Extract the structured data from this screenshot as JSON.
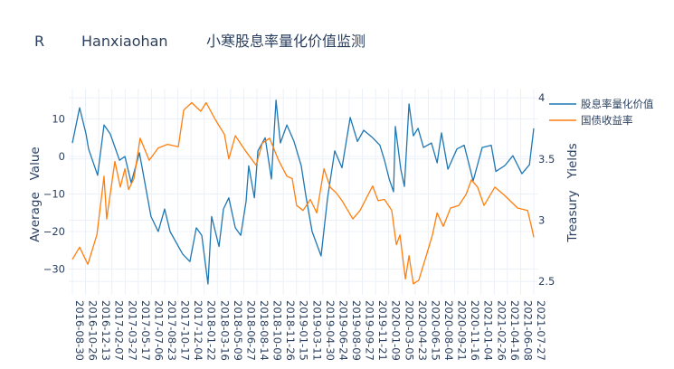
{
  "title": {
    "parts": [
      "R",
      "Hanxiaohan",
      "小寒股息率量化价值监测"
    ]
  },
  "chart_data": {
    "type": "line",
    "title": "R Hanxiaohan 小寒股息率量化价值监测",
    "xlabel": "",
    "ylabel": "Average   Value",
    "y2label": "Treasury   Yields",
    "x_note": "x in approximate day offsets from first tick to last tick",
    "x_range": [
      0,
      1790
    ],
    "ylim": [
      -35.9,
      17.6
    ],
    "y2lim": [
      2.42,
      4.06
    ],
    "yticks": [
      -30,
      -20,
      -10,
      0,
      10
    ],
    "ytick_labels": [
      "−30",
      "−20",
      "−10",
      "0",
      "10"
    ],
    "y2ticks": [
      2.5,
      3,
      3.5,
      4
    ],
    "y2tick_labels": [
      "2.5",
      "3",
      "3.5",
      "4"
    ],
    "xtick_labels": [
      "2016-08-30",
      "2016-10-26",
      "2016-12-13",
      "2017-02-07",
      "2017-03-27",
      "2017-05-17",
      "2017-07-06",
      "2017-08-23",
      "2017-10-17",
      "2017-12-04",
      "2018-01-22",
      "2018-03-16",
      "2018-05-09",
      "2018-06-27",
      "2018-08-14",
      "2018-10-09",
      "2018-11-26",
      "2019-01-15",
      "2019-03-11",
      "2019-04-30",
      "2019-06-24",
      "2019-08-09",
      "2019-09-27",
      "2019-11-21",
      "2020-01-09",
      "2020-03-05",
      "2020-04-23",
      "2020-06-15",
      "2020-08-04",
      "2020-09-21",
      "2020-11-16",
      "2021-01-04",
      "2021-02-26",
      "2021-04-16",
      "2021-06-08",
      "2021-07-27"
    ],
    "grid": true,
    "legend_position": "top-right",
    "series": [
      {
        "name": "股息率量化价值",
        "axis": "y",
        "color": "#1f77b4",
        "points": [
          [
            0,
            3.6
          ],
          [
            28,
            13
          ],
          [
            53,
            6
          ],
          [
            63,
            2
          ],
          [
            98,
            -5
          ],
          [
            123,
            8.4
          ],
          [
            147,
            6
          ],
          [
            183,
            -1
          ],
          [
            204,
            0
          ],
          [
            228,
            -7
          ],
          [
            260,
            1
          ],
          [
            305,
            -16
          ],
          [
            333,
            -20
          ],
          [
            358,
            -14
          ],
          [
            379,
            -20
          ],
          [
            428,
            -26
          ],
          [
            456,
            -28
          ],
          [
            481,
            -19
          ],
          [
            502,
            -21
          ],
          [
            526,
            -34
          ],
          [
            540,
            -16
          ],
          [
            569,
            -24
          ],
          [
            586,
            -14
          ],
          [
            607,
            -11
          ],
          [
            632,
            -19
          ],
          [
            653,
            -21
          ],
          [
            674,
            -12
          ],
          [
            684,
            -2.5
          ],
          [
            706,
            -11
          ],
          [
            720,
            1.5
          ],
          [
            748,
            5
          ],
          [
            772,
            -6
          ],
          [
            790,
            15
          ],
          [
            807,
            3.6
          ],
          [
            832,
            8.4
          ],
          [
            860,
            4
          ],
          [
            888,
            -2.5
          ],
          [
            906,
            -10.5
          ],
          [
            930,
            -20
          ],
          [
            965,
            -26.5
          ],
          [
            990,
            -11
          ],
          [
            1018,
            1.5
          ],
          [
            1046,
            -3
          ],
          [
            1078,
            10.4
          ],
          [
            1106,
            4
          ],
          [
            1130,
            7
          ],
          [
            1165,
            5
          ],
          [
            1193,
            3
          ],
          [
            1211,
            -1
          ],
          [
            1229,
            -6
          ],
          [
            1246,
            -9.4
          ],
          [
            1253,
            8
          ],
          [
            1274,
            -3.4
          ],
          [
            1288,
            -8
          ],
          [
            1306,
            14
          ],
          [
            1323,
            5.5
          ],
          [
            1341,
            7.5
          ],
          [
            1362,
            2.4
          ],
          [
            1393,
            3.6
          ],
          [
            1415,
            -1.7
          ],
          [
            1432,
            6.3
          ],
          [
            1457,
            -3.4
          ],
          [
            1492,
            2
          ],
          [
            1520,
            3
          ],
          [
            1555,
            -6.5
          ],
          [
            1590,
            2.4
          ],
          [
            1625,
            3
          ],
          [
            1643,
            -4
          ],
          [
            1678,
            -2.4
          ],
          [
            1709,
            0.2
          ],
          [
            1744,
            -4.6
          ],
          [
            1773,
            -2.2
          ],
          [
            1790,
            7.5
          ]
        ]
      },
      {
        "name": "国债收益率",
        "axis": "y2",
        "color": "#ff7f0e",
        "points": [
          [
            0,
            2.68
          ],
          [
            28,
            2.78
          ],
          [
            60,
            2.64
          ],
          [
            95,
            2.88
          ],
          [
            123,
            3.36
          ],
          [
            133,
            3.01
          ],
          [
            165,
            3.48
          ],
          [
            186,
            3.27
          ],
          [
            204,
            3.42
          ],
          [
            218,
            3.25
          ],
          [
            239,
            3.34
          ],
          [
            263,
            3.67
          ],
          [
            298,
            3.49
          ],
          [
            333,
            3.59
          ],
          [
            369,
            3.62
          ],
          [
            411,
            3.6
          ],
          [
            432,
            3.9
          ],
          [
            463,
            3.96
          ],
          [
            498,
            3.89
          ],
          [
            519,
            3.96
          ],
          [
            555,
            3.82
          ],
          [
            590,
            3.7
          ],
          [
            607,
            3.5
          ],
          [
            632,
            3.69
          ],
          [
            674,
            3.56
          ],
          [
            713,
            3.45
          ],
          [
            737,
            3.63
          ],
          [
            765,
            3.67
          ],
          [
            800,
            3.49
          ],
          [
            832,
            3.36
          ],
          [
            853,
            3.34
          ],
          [
            870,
            3.12
          ],
          [
            895,
            3.08
          ],
          [
            923,
            3.17
          ],
          [
            948,
            3.06
          ],
          [
            976,
            3.42
          ],
          [
            1000,
            3.27
          ],
          [
            1025,
            3.22
          ],
          [
            1046,
            3.16
          ],
          [
            1088,
            3.01
          ],
          [
            1116,
            3.08
          ],
          [
            1165,
            3.28
          ],
          [
            1186,
            3.16
          ],
          [
            1211,
            3.17
          ],
          [
            1239,
            3.08
          ],
          [
            1257,
            2.8
          ],
          [
            1271,
            2.88
          ],
          [
            1292,
            2.52
          ],
          [
            1306,
            2.71
          ],
          [
            1323,
            2.48
          ],
          [
            1344,
            2.51
          ],
          [
            1376,
            2.73
          ],
          [
            1397,
            2.88
          ],
          [
            1415,
            3.06
          ],
          [
            1439,
            2.95
          ],
          [
            1467,
            3.1
          ],
          [
            1499,
            3.12
          ],
          [
            1527,
            3.21
          ],
          [
            1548,
            3.33
          ],
          [
            1572,
            3.27
          ],
          [
            1597,
            3.12
          ],
          [
            1639,
            3.27
          ],
          [
            1678,
            3.2
          ],
          [
            1727,
            3.1
          ],
          [
            1766,
            3.08
          ],
          [
            1783,
            2.93
          ],
          [
            1790,
            2.86
          ]
        ]
      }
    ]
  }
}
